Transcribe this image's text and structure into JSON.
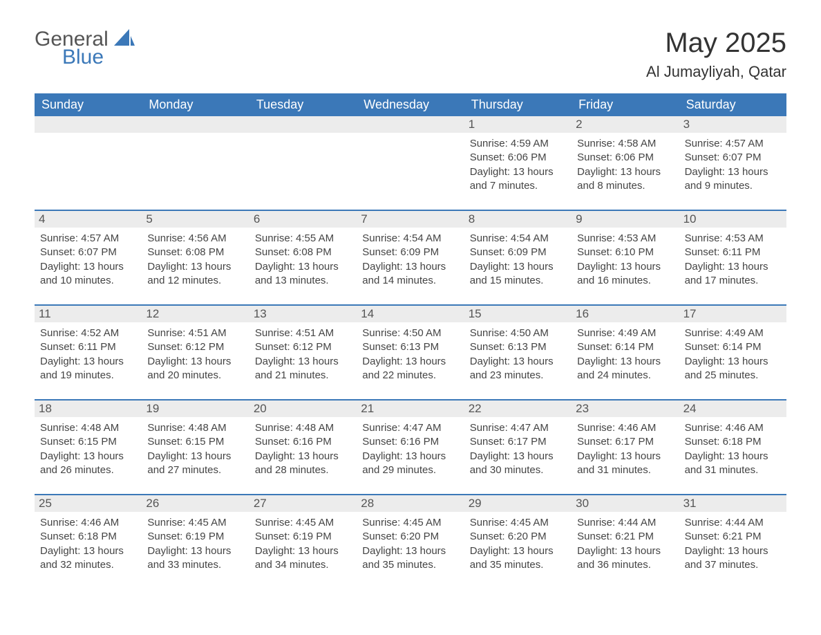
{
  "logo": {
    "text1": "General",
    "text2": "Blue"
  },
  "title": "May 2025",
  "location": "Al Jumayliyah, Qatar",
  "colors": {
    "header_bg": "#3b78b8",
    "header_text": "#ffffff",
    "daynum_bg": "#ececec",
    "body_text": "#444444",
    "rule": "#3b78b8"
  },
  "weekdays": [
    "Sunday",
    "Monday",
    "Tuesday",
    "Wednesday",
    "Thursday",
    "Friday",
    "Saturday"
  ],
  "weeks": [
    [
      {
        "n": "",
        "lines": []
      },
      {
        "n": "",
        "lines": []
      },
      {
        "n": "",
        "lines": []
      },
      {
        "n": "",
        "lines": []
      },
      {
        "n": "1",
        "lines": [
          "Sunrise: 4:59 AM",
          "Sunset: 6:06 PM",
          "Daylight: 13 hours and 7 minutes."
        ]
      },
      {
        "n": "2",
        "lines": [
          "Sunrise: 4:58 AM",
          "Sunset: 6:06 PM",
          "Daylight: 13 hours and 8 minutes."
        ]
      },
      {
        "n": "3",
        "lines": [
          "Sunrise: 4:57 AM",
          "Sunset: 6:07 PM",
          "Daylight: 13 hours and 9 minutes."
        ]
      }
    ],
    [
      {
        "n": "4",
        "lines": [
          "Sunrise: 4:57 AM",
          "Sunset: 6:07 PM",
          "Daylight: 13 hours and 10 minutes."
        ]
      },
      {
        "n": "5",
        "lines": [
          "Sunrise: 4:56 AM",
          "Sunset: 6:08 PM",
          "Daylight: 13 hours and 12 minutes."
        ]
      },
      {
        "n": "6",
        "lines": [
          "Sunrise: 4:55 AM",
          "Sunset: 6:08 PM",
          "Daylight: 13 hours and 13 minutes."
        ]
      },
      {
        "n": "7",
        "lines": [
          "Sunrise: 4:54 AM",
          "Sunset: 6:09 PM",
          "Daylight: 13 hours and 14 minutes."
        ]
      },
      {
        "n": "8",
        "lines": [
          "Sunrise: 4:54 AM",
          "Sunset: 6:09 PM",
          "Daylight: 13 hours and 15 minutes."
        ]
      },
      {
        "n": "9",
        "lines": [
          "Sunrise: 4:53 AM",
          "Sunset: 6:10 PM",
          "Daylight: 13 hours and 16 minutes."
        ]
      },
      {
        "n": "10",
        "lines": [
          "Sunrise: 4:53 AM",
          "Sunset: 6:11 PM",
          "Daylight: 13 hours and 17 minutes."
        ]
      }
    ],
    [
      {
        "n": "11",
        "lines": [
          "Sunrise: 4:52 AM",
          "Sunset: 6:11 PM",
          "Daylight: 13 hours and 19 minutes."
        ]
      },
      {
        "n": "12",
        "lines": [
          "Sunrise: 4:51 AM",
          "Sunset: 6:12 PM",
          "Daylight: 13 hours and 20 minutes."
        ]
      },
      {
        "n": "13",
        "lines": [
          "Sunrise: 4:51 AM",
          "Sunset: 6:12 PM",
          "Daylight: 13 hours and 21 minutes."
        ]
      },
      {
        "n": "14",
        "lines": [
          "Sunrise: 4:50 AM",
          "Sunset: 6:13 PM",
          "Daylight: 13 hours and 22 minutes."
        ]
      },
      {
        "n": "15",
        "lines": [
          "Sunrise: 4:50 AM",
          "Sunset: 6:13 PM",
          "Daylight: 13 hours and 23 minutes."
        ]
      },
      {
        "n": "16",
        "lines": [
          "Sunrise: 4:49 AM",
          "Sunset: 6:14 PM",
          "Daylight: 13 hours and 24 minutes."
        ]
      },
      {
        "n": "17",
        "lines": [
          "Sunrise: 4:49 AM",
          "Sunset: 6:14 PM",
          "Daylight: 13 hours and 25 minutes."
        ]
      }
    ],
    [
      {
        "n": "18",
        "lines": [
          "Sunrise: 4:48 AM",
          "Sunset: 6:15 PM",
          "Daylight: 13 hours and 26 minutes."
        ]
      },
      {
        "n": "19",
        "lines": [
          "Sunrise: 4:48 AM",
          "Sunset: 6:15 PM",
          "Daylight: 13 hours and 27 minutes."
        ]
      },
      {
        "n": "20",
        "lines": [
          "Sunrise: 4:48 AM",
          "Sunset: 6:16 PM",
          "Daylight: 13 hours and 28 minutes."
        ]
      },
      {
        "n": "21",
        "lines": [
          "Sunrise: 4:47 AM",
          "Sunset: 6:16 PM",
          "Daylight: 13 hours and 29 minutes."
        ]
      },
      {
        "n": "22",
        "lines": [
          "Sunrise: 4:47 AM",
          "Sunset: 6:17 PM",
          "Daylight: 13 hours and 30 minutes."
        ]
      },
      {
        "n": "23",
        "lines": [
          "Sunrise: 4:46 AM",
          "Sunset: 6:17 PM",
          "Daylight: 13 hours and 31 minutes."
        ]
      },
      {
        "n": "24",
        "lines": [
          "Sunrise: 4:46 AM",
          "Sunset: 6:18 PM",
          "Daylight: 13 hours and 31 minutes."
        ]
      }
    ],
    [
      {
        "n": "25",
        "lines": [
          "Sunrise: 4:46 AM",
          "Sunset: 6:18 PM",
          "Daylight: 13 hours and 32 minutes."
        ]
      },
      {
        "n": "26",
        "lines": [
          "Sunrise: 4:45 AM",
          "Sunset: 6:19 PM",
          "Daylight: 13 hours and 33 minutes."
        ]
      },
      {
        "n": "27",
        "lines": [
          "Sunrise: 4:45 AM",
          "Sunset: 6:19 PM",
          "Daylight: 13 hours and 34 minutes."
        ]
      },
      {
        "n": "28",
        "lines": [
          "Sunrise: 4:45 AM",
          "Sunset: 6:20 PM",
          "Daylight: 13 hours and 35 minutes."
        ]
      },
      {
        "n": "29",
        "lines": [
          "Sunrise: 4:45 AM",
          "Sunset: 6:20 PM",
          "Daylight: 13 hours and 35 minutes."
        ]
      },
      {
        "n": "30",
        "lines": [
          "Sunrise: 4:44 AM",
          "Sunset: 6:21 PM",
          "Daylight: 13 hours and 36 minutes."
        ]
      },
      {
        "n": "31",
        "lines": [
          "Sunrise: 4:44 AM",
          "Sunset: 6:21 PM",
          "Daylight: 13 hours and 37 minutes."
        ]
      }
    ]
  ]
}
